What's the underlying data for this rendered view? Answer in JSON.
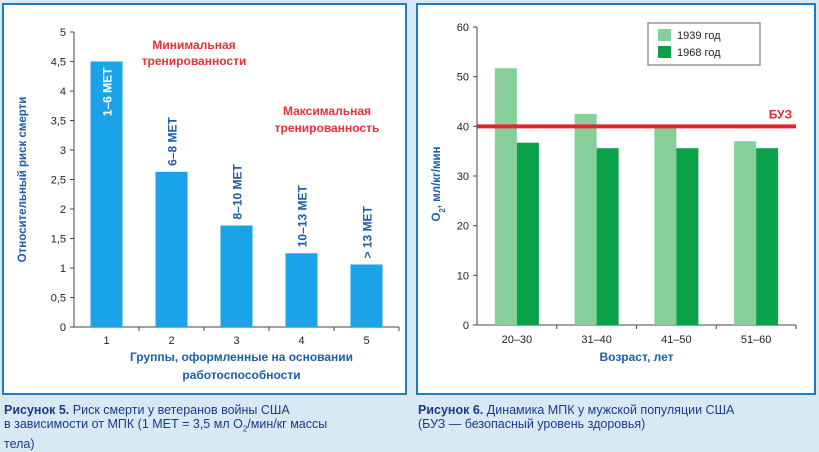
{
  "figure1": {
    "caption_label": "Рисунок 5.",
    "caption_lines": [
      "Риск смерти у ветеранов войны США",
      "в зависимости от МПК (1 МЕТ = 3,5 мл O",
      "/мин/кг массы",
      "тела)"
    ],
    "caption_sub": "2",
    "annotation_min": [
      "Минимальная",
      "тренированности"
    ],
    "annotation_max": [
      "Максимальная",
      "тренированность"
    ],
    "colors": {
      "bar": "#1aa3e8",
      "axis_text": "#1d5fa8",
      "annotation": "#e8303a"
    },
    "chart_data": {
      "type": "bar",
      "categories": [
        "1",
        "2",
        "3",
        "4",
        "5"
      ],
      "values": [
        4.5,
        2.63,
        1.72,
        1.25,
        1.06
      ],
      "bar_labels": [
        "1–6 МЕТ",
        "6–8 МЕТ",
        "8–10 МЕТ",
        "10–13 МЕТ",
        "> 13 МЕТ"
      ],
      "ylabel": "Относительный риск смерти",
      "xlabel": [
        "Группы, оформленные на основании",
        "работоспособности"
      ],
      "ylim": [
        0,
        5
      ],
      "yticks": [
        "0",
        "0,5",
        "1",
        "1,5",
        "2",
        "2,5",
        "3",
        "3,5",
        "4",
        "4,5",
        "5"
      ]
    }
  },
  "figure2": {
    "caption_label": "Рисунок 6.",
    "caption_lines": [
      "Динамика МПК у мужской популяции США",
      "(БУЗ — безопасный уровень здоровья)"
    ],
    "colors": {
      "s1939": "#86cf9b",
      "s1968": "#0aa14b",
      "line": "#e3262d",
      "axis_text": "#1d5fa8"
    },
    "chart_data": {
      "type": "bar",
      "categories": [
        "20–30",
        "31–40",
        "41–50",
        "51–60"
      ],
      "series": [
        {
          "name": "1939 год",
          "values": [
            51.7,
            42.5,
            40.2,
            37.0
          ]
        },
        {
          "name": "1968 год",
          "values": [
            36.7,
            35.6,
            35.6,
            35.6
          ]
        }
      ],
      "reference_line": {
        "label": "БУЗ",
        "value": 40
      },
      "ylabel": "O",
      "ylabel_sub": "2",
      "ylabel_rest": ", мл/кг/мин",
      "xlabel": "Возраст, лет",
      "ylim": [
        0,
        60
      ],
      "yticks": [
        "0",
        "10",
        "20",
        "30",
        "40",
        "50",
        "60"
      ],
      "legend": "top-right"
    }
  }
}
